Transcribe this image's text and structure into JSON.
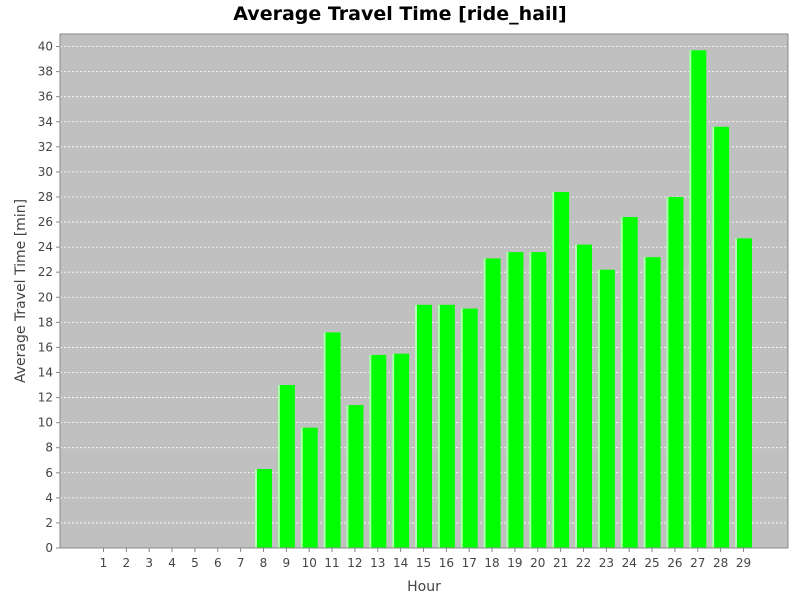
{
  "chart_data": {
    "type": "bar",
    "title": "Average Travel Time [ride_hail]",
    "xlabel": "Hour",
    "ylabel": "Average Travel Time [min]",
    "categories": [
      "1",
      "2",
      "3",
      "4",
      "5",
      "6",
      "7",
      "8",
      "9",
      "10",
      "11",
      "12",
      "13",
      "14",
      "15",
      "16",
      "17",
      "18",
      "19",
      "20",
      "21",
      "22",
      "23",
      "24",
      "25",
      "26",
      "27",
      "28",
      "29"
    ],
    "values": [
      0,
      0,
      0,
      0,
      0,
      0,
      0,
      6.3,
      13.0,
      9.6,
      17.2,
      11.4,
      15.4,
      15.5,
      19.4,
      19.4,
      19.1,
      23.1,
      23.6,
      23.6,
      28.4,
      24.2,
      22.2,
      26.4,
      23.2,
      28.0,
      39.7,
      33.6,
      24.7
    ],
    "ylim": [
      0,
      41
    ],
    "yticks": [
      0,
      2,
      4,
      6,
      8,
      10,
      12,
      14,
      16,
      18,
      20,
      22,
      24,
      26,
      28,
      30,
      32,
      34,
      36,
      38,
      40
    ],
    "grid": true,
    "colors": {
      "bar": "#00ff00",
      "bar_highlight": "#b3ffb3",
      "plot_background": "#c0c0c0",
      "grid": "#ffffff",
      "axis": "#888888"
    }
  }
}
